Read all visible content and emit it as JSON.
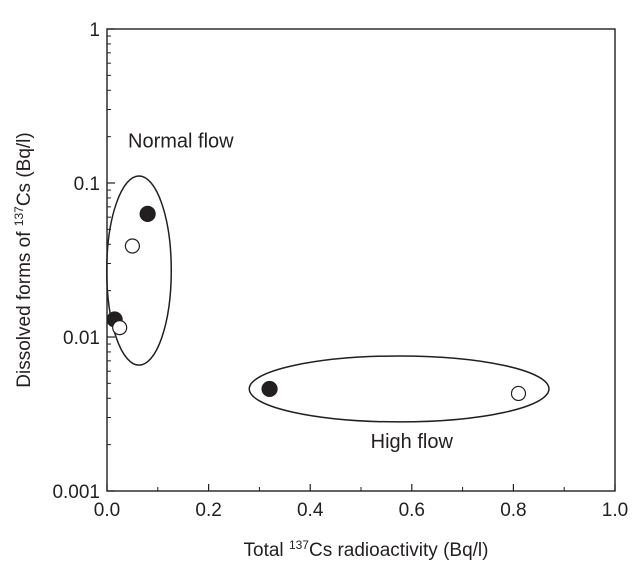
{
  "chart_data": {
    "type": "scatter",
    "title": "",
    "xlabel": {
      "prefix": "Total ",
      "sup": "137",
      "suffix": "Cs radioactivity (Bq/l)"
    },
    "ylabel": {
      "prefix": "Dissolved forms of ",
      "sup": "137",
      "suffix": "Cs (Bq/l)"
    },
    "xlim": [
      0,
      1.0
    ],
    "ylim": [
      0.001,
      1
    ],
    "yscale": "log",
    "grid": false,
    "legend": "none",
    "x_ticks": [
      {
        "value": 0.0,
        "label": "0.0"
      },
      {
        "value": 0.2,
        "label": "0.2"
      },
      {
        "value": 0.4,
        "label": "0.4"
      },
      {
        "value": 0.6,
        "label": "0.6"
      },
      {
        "value": 0.8,
        "label": "0.8"
      },
      {
        "value": 1.0,
        "label": "1.0"
      }
    ],
    "y_ticks": [
      {
        "value": 0.001,
        "label": "0.001"
      },
      {
        "value": 0.01,
        "label": "0.01"
      },
      {
        "value": 0.1,
        "label": "0.1"
      },
      {
        "value": 1,
        "label": "1"
      }
    ],
    "series": [
      {
        "marker": "filled-circle",
        "color": "#231f20",
        "points": [
          {
            "x": 0.08,
            "y": 0.063
          },
          {
            "x": 0.015,
            "y": 0.013
          },
          {
            "x": 0.32,
            "y": 0.0046
          }
        ]
      },
      {
        "marker": "open-circle",
        "color": "#231f20",
        "points": [
          {
            "x": 0.05,
            "y": 0.039
          },
          {
            "x": 0.025,
            "y": 0.0115
          },
          {
            "x": 0.81,
            "y": 0.0043
          }
        ]
      }
    ],
    "groups": [
      {
        "label": "Normal flow",
        "center": {
          "x": 0.063,
          "y": 0.027
        },
        "x_range": [
          0.0,
          0.127
        ],
        "y_range": [
          0.0065,
          0.11
        ]
      },
      {
        "label": "High flow",
        "center": {
          "x": 0.575,
          "y": 0.0046
        },
        "x_range": [
          0.28,
          0.87
        ],
        "y_range": [
          0.0028,
          0.0075
        ]
      }
    ],
    "annotations": [
      {
        "text": "Normal flow",
        "x": 0.12,
        "y": 0.17
      },
      {
        "text": "High flow",
        "x": 0.6,
        "y": 0.0019
      }
    ]
  },
  "colors": {
    "ink": "#231f20",
    "background": "#ffffff"
  }
}
